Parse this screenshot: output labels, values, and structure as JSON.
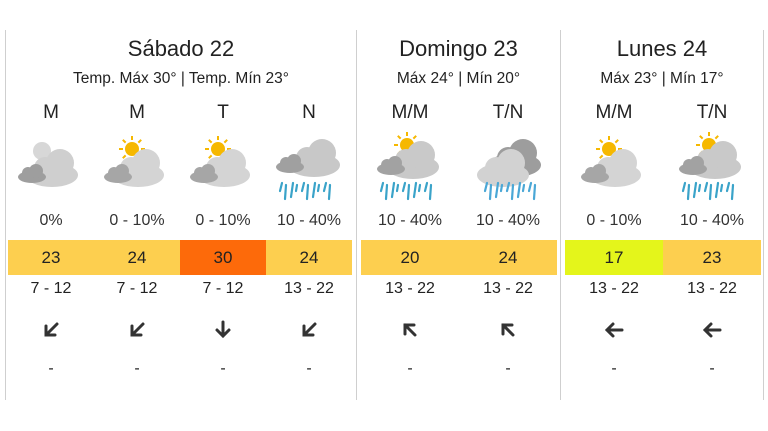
{
  "days": [
    {
      "title": "Sábado 22",
      "temps": "Temp. Máx 30° | Temp. Mín 23°",
      "periods": [
        {
          "label": "M",
          "icon": "partly-cloudy-night-icon",
          "rain": "0%",
          "temp": "23",
          "temp_color": "#fdcf4f",
          "wind": "7 - 12",
          "dir": "wind-southwest-arrow-icon",
          "extra": "-"
        },
        {
          "label": "M",
          "icon": "partly-sunny-icon",
          "rain": "0 - 10%",
          "temp": "24",
          "temp_color": "#fdcf4f",
          "wind": "7 - 12",
          "dir": "wind-southwest-arrow-icon",
          "extra": "-"
        },
        {
          "label": "T",
          "icon": "partly-sunny-icon",
          "rain": "0 - 10%",
          "temp": "30",
          "temp_color": "#fd6a0a",
          "wind": "7 - 12",
          "dir": "wind-south-arrow-icon",
          "extra": "-"
        },
        {
          "label": "N",
          "icon": "cloudy-rain-icon",
          "rain": "10 - 40%",
          "temp": "24",
          "temp_color": "#fdcf4f",
          "wind": "13 - 22",
          "dir": "wind-southwest-arrow-icon",
          "extra": "-"
        }
      ]
    },
    {
      "title": "Domingo 23",
      "temps": "Máx 24° | Mín 20°",
      "periods": [
        {
          "label": "M/M",
          "icon": "sun-cloud-rain-icon",
          "rain": "10 - 40%",
          "temp": "20",
          "temp_color": "#fdcf4f",
          "wind": "13 - 22",
          "dir": "wind-northwest-arrow-icon",
          "extra": "-"
        },
        {
          "label": "T/N",
          "icon": "dark-cloud-showers-icon",
          "rain": "10 - 40%",
          "temp": "24",
          "temp_color": "#fdcf4f",
          "wind": "13 - 22",
          "dir": "wind-northwest-arrow-icon",
          "extra": "-"
        }
      ]
    },
    {
      "title": "Lunes 24",
      "temps": "Máx 23° | Mín 17°",
      "periods": [
        {
          "label": "M/M",
          "icon": "partly-sunny-icon",
          "rain": "0 - 10%",
          "temp": "17",
          "temp_color": "#e4f51b",
          "wind": "13 - 22",
          "dir": "wind-west-arrow-icon",
          "extra": "-"
        },
        {
          "label": "T/N",
          "icon": "sun-cloud-rain-icon",
          "rain": "10 - 40%",
          "temp": "23",
          "temp_color": "#fdcf4f",
          "wind": "13 - 22",
          "dir": "wind-west-arrow-icon",
          "extra": "-"
        }
      ]
    }
  ]
}
